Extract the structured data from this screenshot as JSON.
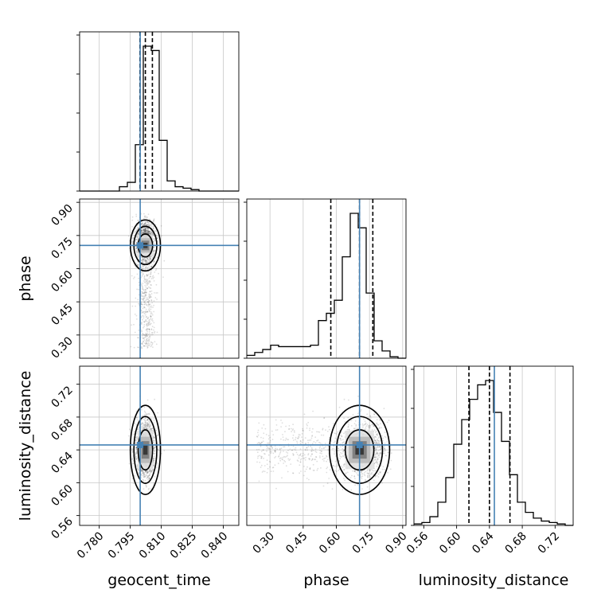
{
  "chart_data": {
    "type": "corner",
    "parameters": [
      "geocent_time",
      "phase",
      "luminosity_distance"
    ],
    "axis_labels": {
      "geocent_time": "geocent_time",
      "phase": "phase",
      "luminosity_distance": "luminosity_distance"
    },
    "ranges": {
      "geocent_time": [
        0.7705,
        0.8475
      ],
      "phase": [
        0.195,
        0.915
      ],
      "luminosity_distance": [
        0.548,
        0.742
      ]
    },
    "ticks": {
      "geocent_time": [
        "0.780",
        "0.795",
        "0.810",
        "0.825",
        "0.840"
      ],
      "phase": [
        "0.30",
        "0.45",
        "0.60",
        "0.75",
        "0.90"
      ],
      "luminosity_distance": [
        "0.56",
        "0.60",
        "0.64",
        "0.68",
        "0.72"
      ]
    },
    "truths": {
      "geocent_time": 0.7998,
      "phase": 0.705,
      "luminosity_distance": 0.646
    },
    "quantiles": {
      "geocent_time": [
        0.7997,
        0.8023,
        0.8057
      ],
      "phase": [
        0.575,
        0.705,
        0.765
      ],
      "luminosity_distance": [
        0.615,
        0.64,
        0.665
      ]
    },
    "histograms": {
      "geocent_time": {
        "bin_start": 0.7705,
        "bin_width": 0.00385,
        "counts": [
          0,
          0,
          0,
          0,
          0,
          0.03,
          0.06,
          0.32,
          1.0,
          0.97,
          0.35,
          0.07,
          0.03,
          0.02,
          0.01,
          0,
          0,
          0,
          0,
          0
        ]
      },
      "phase": {
        "bin_start": 0.195,
        "bin_width": 0.036,
        "counts": [
          0.02,
          0.04,
          0.06,
          0.09,
          0.08,
          0.08,
          0.08,
          0.08,
          0.09,
          0.26,
          0.31,
          0.4,
          0.7,
          1.0,
          0.9,
          0.45,
          0.12,
          0.05,
          0.01,
          0
        ]
      },
      "luminosity_distance": {
        "bin_start": 0.548,
        "bin_width": 0.0097,
        "counts": [
          0.01,
          0.02,
          0.06,
          0.16,
          0.33,
          0.56,
          0.73,
          0.87,
          0.97,
          1.0,
          0.78,
          0.58,
          0.35,
          0.16,
          0.09,
          0.05,
          0.03,
          0.02,
          0.01,
          0
        ]
      }
    },
    "grid": true
  }
}
